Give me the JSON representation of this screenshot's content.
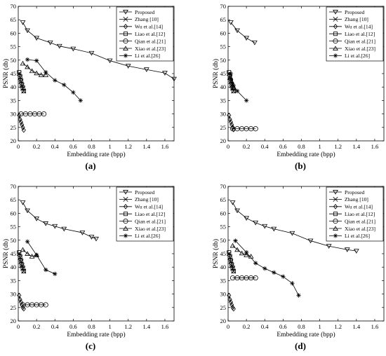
{
  "chart_data": [
    {
      "type": "line",
      "panel_label": "(a)",
      "xlabel": "Embedding rate (bpp)",
      "ylabel": "PSNR (db)",
      "xlim": [
        0,
        1.7
      ],
      "ylim": [
        20,
        70
      ],
      "xticks": [
        "0",
        "0.2",
        "0.4",
        "0.6",
        "0.8",
        "1",
        "1.2",
        "1.4",
        "1.6"
      ],
      "yticks": [
        "20",
        "25",
        "30",
        "35",
        "40",
        "45",
        "50",
        "55",
        "60",
        "65",
        "70"
      ],
      "grid": false,
      "legend_position": "top-right",
      "series": [
        {
          "name": "Proposed",
          "marker": "triangle-down",
          "x": [
            0.05,
            0.1,
            0.2,
            0.35,
            0.45,
            0.6,
            0.8,
            1.0,
            1.2,
            1.4,
            1.6,
            1.7
          ],
          "y": [
            64,
            61,
            58.2,
            56.5,
            55.2,
            54.2,
            52.6,
            49.8,
            47.8,
            46.5,
            45.2,
            43
          ]
        },
        {
          "name": "Zhang [10]",
          "marker": "x",
          "x": [
            0.01,
            0.02,
            0.03,
            0.04,
            0.05,
            0.06
          ],
          "y": [
            45,
            43.5,
            42,
            40.5,
            39.5,
            38.5
          ]
        },
        {
          "name": "Wu et al.[14]",
          "marker": "diamond",
          "x": [
            0.01,
            0.02,
            0.03,
            0.04,
            0.05,
            0.06
          ],
          "y": [
            29.5,
            28,
            27,
            26,
            25,
            24
          ]
        },
        {
          "name": "Liao et al.[12]",
          "marker": "square",
          "x": [
            0.01,
            0.02,
            0.03,
            0.04,
            0.05,
            0.06
          ],
          "y": [
            45.5,
            44,
            42.5,
            41,
            39.8,
            38.5
          ]
        },
        {
          "name": "Qian et al.[21]",
          "marker": "circle",
          "x": [
            0.03,
            0.08,
            0.13,
            0.18,
            0.23,
            0.28
          ],
          "y": [
            30,
            30,
            30,
            30,
            30,
            30
          ]
        },
        {
          "name": "Xiao et al.[23]",
          "marker": "triangle-up",
          "x": [
            0.05,
            0.1,
            0.15,
            0.2,
            0.25,
            0.3
          ],
          "y": [
            48.8,
            47.5,
            46,
            45.2,
            44.5,
            44.5
          ]
        },
        {
          "name": "Li et al.[26]",
          "marker": "asterisk",
          "x": [
            0.1,
            0.2,
            0.3,
            0.4,
            0.5,
            0.6,
            0.68
          ],
          "y": [
            50.2,
            49.8,
            45.5,
            42.5,
            40.8,
            38,
            35
          ]
        }
      ]
    },
    {
      "type": "line",
      "panel_label": "(b)",
      "xlabel": "Embedding rate (bpp)",
      "ylabel": "PSNR (db)",
      "xlim": [
        0,
        1.7
      ],
      "ylim": [
        20,
        70
      ],
      "xticks": [
        "0",
        "0.2",
        "0.4",
        "0.6",
        "0.8",
        "1",
        "1.2",
        "1.4",
        "1.6"
      ],
      "yticks": [
        "20",
        "25",
        "30",
        "35",
        "40",
        "45",
        "50",
        "55",
        "60",
        "65",
        "70"
      ],
      "grid": false,
      "legend_position": "top-right",
      "series": [
        {
          "name": "Proposed",
          "marker": "triangle-down",
          "x": [
            0.03,
            0.1,
            0.2,
            0.29
          ],
          "y": [
            64,
            61,
            58.2,
            56.5
          ]
        },
        {
          "name": "Zhang [10]",
          "marker": "x",
          "x": [
            0.01,
            0.02,
            0.03,
            0.04,
            0.05,
            0.06
          ],
          "y": [
            45,
            43.5,
            42,
            40.5,
            39.5,
            38.5
          ]
        },
        {
          "name": "Wu et al.[14]",
          "marker": "diamond",
          "x": [
            0.01,
            0.02,
            0.03,
            0.04,
            0.05,
            0.06
          ],
          "y": [
            29.5,
            28,
            27,
            26,
            25,
            24.2
          ]
        },
        {
          "name": "Liao et al.[12]",
          "marker": "square",
          "x": [
            0.01,
            0.02,
            0.03,
            0.04,
            0.05,
            0.06
          ],
          "y": [
            45.5,
            44,
            42.5,
            41,
            39.8,
            38.5
          ]
        },
        {
          "name": "Qian et al.[21]",
          "marker": "circle",
          "x": [
            0.05,
            0.1,
            0.15,
            0.2,
            0.25,
            0.3
          ],
          "y": [
            24.5,
            24.5,
            24.5,
            24.5,
            24.5,
            24.5
          ]
        },
        {
          "name": "Xiao et al.[23]",
          "marker": "triangle-up",
          "x": [
            0.02,
            0.04,
            0.06
          ],
          "y": [
            43.5,
            42,
            40
          ]
        },
        {
          "name": "Li et al.[26]",
          "marker": "asterisk",
          "x": [
            0.03,
            0.06,
            0.1,
            0.2
          ],
          "y": [
            45,
            40.5,
            38.5,
            35
          ]
        }
      ]
    },
    {
      "type": "line",
      "panel_label": "(c)",
      "xlabel": "Embedding rate (bpp)",
      "ylabel": "PSNR (db)",
      "xlim": [
        0,
        1.7
      ],
      "ylim": [
        20,
        70
      ],
      "xticks": [
        "0",
        "0.2",
        "0.4",
        "0.6",
        "0.8",
        "1",
        "1.2",
        "1.4",
        "1.6"
      ],
      "yticks": [
        "20",
        "25",
        "30",
        "35",
        "40",
        "45",
        "50",
        "55",
        "60",
        "65",
        "70"
      ],
      "grid": false,
      "legend_position": "top-right",
      "series": [
        {
          "name": "Proposed",
          "marker": "triangle-down",
          "x": [
            0.05,
            0.1,
            0.2,
            0.3,
            0.4,
            0.5,
            0.7,
            0.8,
            0.85
          ],
          "y": [
            64,
            61,
            58,
            56.2,
            55.2,
            54.2,
            52.8,
            51.2,
            50.5
          ]
        },
        {
          "name": "Zhang [10]",
          "marker": "x",
          "x": [
            0.01,
            0.02,
            0.03,
            0.04,
            0.05,
            0.06
          ],
          "y": [
            45,
            43.5,
            42,
            40.5,
            39.5,
            38.5
          ]
        },
        {
          "name": "Wu et al.[14]",
          "marker": "diamond",
          "x": [
            0.01,
            0.02,
            0.03,
            0.04,
            0.05,
            0.06
          ],
          "y": [
            29.5,
            28,
            27,
            26,
            25,
            24.5
          ]
        },
        {
          "name": "Liao et al.[12]",
          "marker": "square",
          "x": [
            0.01,
            0.02,
            0.03,
            0.04,
            0.05,
            0.06
          ],
          "y": [
            45.5,
            44,
            42.5,
            41,
            39.8,
            38.5
          ]
        },
        {
          "name": "Qian et al.[21]",
          "marker": "circle",
          "x": [
            0.05,
            0.1,
            0.15,
            0.2,
            0.25,
            0.3
          ],
          "y": [
            26,
            26,
            26,
            26,
            26,
            26
          ]
        },
        {
          "name": "Xiao et al.[23]",
          "marker": "triangle-up",
          "x": [
            0.05,
            0.1,
            0.15,
            0.2
          ],
          "y": [
            46.5,
            45,
            44,
            44.5
          ]
        },
        {
          "name": "Li et al.[26]",
          "marker": "asterisk",
          "x": [
            0.1,
            0.2,
            0.3,
            0.4
          ],
          "y": [
            49.5,
            44.5,
            39,
            37.5
          ]
        }
      ]
    },
    {
      "type": "line",
      "panel_label": "(d)",
      "xlabel": "Embedding rate (bpp)",
      "ylabel": "PSNR (db)",
      "xlim": [
        0,
        1.7
      ],
      "ylim": [
        20,
        70
      ],
      "xticks": [
        "0",
        "0.2",
        "0.4",
        "0.6",
        "0.8",
        "1",
        "1.2",
        "1.4",
        "1.6"
      ],
      "yticks": [
        "20",
        "25",
        "30",
        "35",
        "40",
        "45",
        "50",
        "55",
        "60",
        "65",
        "70"
      ],
      "grid": false,
      "legend_position": "top-right",
      "series": [
        {
          "name": "Proposed",
          "marker": "triangle-down",
          "x": [
            0.05,
            0.1,
            0.2,
            0.3,
            0.4,
            0.5,
            0.7,
            0.9,
            1.1,
            1.3,
            1.4
          ],
          "y": [
            64,
            61,
            58.2,
            56.5,
            55.2,
            54.2,
            52.6,
            49.8,
            47.8,
            46.5,
            46
          ]
        },
        {
          "name": "Zhang [10]",
          "marker": "x",
          "x": [
            0.01,
            0.02,
            0.03,
            0.04,
            0.05,
            0.06
          ],
          "y": [
            45,
            43.5,
            42,
            40.5,
            39.5,
            38.5
          ]
        },
        {
          "name": "Wu et al.[14]",
          "marker": "diamond",
          "x": [
            0.01,
            0.02,
            0.03,
            0.04,
            0.05,
            0.06
          ],
          "y": [
            29.5,
            28,
            27,
            26,
            25,
            24.5
          ]
        },
        {
          "name": "Liao et al.[12]",
          "marker": "square",
          "x": [
            0.01,
            0.02,
            0.03,
            0.04,
            0.05,
            0.06
          ],
          "y": [
            45.5,
            44,
            42.5,
            41,
            39.8,
            38.5
          ]
        },
        {
          "name": "Qian et al.[21]",
          "marker": "circle",
          "x": [
            0.05,
            0.1,
            0.15,
            0.2,
            0.25,
            0.3
          ],
          "y": [
            36,
            36,
            36,
            36,
            36,
            36
          ]
        },
        {
          "name": "Xiao et al.[23]",
          "marker": "triangle-up",
          "x": [
            0.05,
            0.1,
            0.15,
            0.2,
            0.25
          ],
          "y": [
            48,
            46.5,
            45.2,
            44.5,
            44
          ]
        },
        {
          "name": "Li et al.[26]",
          "marker": "asterisk",
          "x": [
            0.08,
            0.2,
            0.3,
            0.4,
            0.5,
            0.6,
            0.7,
            0.77
          ],
          "y": [
            49.8,
            45.5,
            41.5,
            39.5,
            38,
            36.5,
            34,
            29.5
          ]
        }
      ]
    }
  ]
}
